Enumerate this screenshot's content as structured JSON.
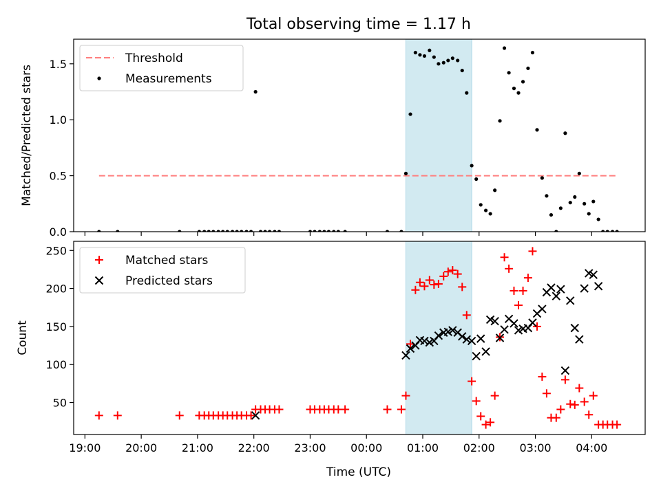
{
  "title": "Total observing time = 1.17 h",
  "xlabel": "Time (UTC)",
  "x_tick_labels": [
    "19:00",
    "20:00",
    "21:00",
    "22:00",
    "23:00",
    "00:00",
    "01:00",
    "02:00",
    "03:00",
    "04:00"
  ],
  "colors": {
    "threshold": "#ff7f7f",
    "measurements": "#000000",
    "matched": "#ff0000",
    "predicted": "#000000",
    "shade": "#add8e6"
  },
  "chart_data": [
    {
      "type": "scatter",
      "ylabel": "Matched/Predicted stars",
      "x_unit": "hours after 19:00 UTC",
      "xlim": [
        -0.2,
        9.95
      ],
      "ylim": [
        0,
        1.72
      ],
      "y_ticks": [
        0.0,
        0.5,
        1.0,
        1.5
      ],
      "y_tick_labels": [
        "0.0",
        "0.5",
        "1.0",
        "1.5"
      ],
      "legend_position": "top-left",
      "legend": [
        "Threshold",
        "Measurements"
      ],
      "threshold": {
        "name": "Threshold",
        "value": 0.5,
        "x_range": [
          0.25,
          9.45
        ]
      },
      "shaded_region": {
        "x_start": 5.7,
        "x_end": 6.87
      },
      "series": [
        {
          "name": "Measurements",
          "x": [
            0.25,
            0.58,
            1.68,
            2.03,
            2.12,
            2.2,
            2.28,
            2.37,
            2.45,
            2.53,
            2.62,
            2.7,
            2.78,
            2.87,
            2.95,
            3.03,
            3.12,
            3.2,
            3.28,
            3.37,
            3.45,
            4.0,
            4.08,
            4.17,
            4.25,
            4.33,
            4.42,
            4.5,
            4.62,
            5.37,
            5.62,
            5.7,
            5.78,
            5.87,
            5.95,
            6.03,
            6.12,
            6.2,
            6.28,
            6.37,
            6.45,
            6.53,
            6.62,
            6.7,
            6.78,
            6.87,
            6.95,
            7.03,
            7.12,
            7.2,
            7.28,
            7.37,
            7.45,
            7.53,
            7.62,
            7.7,
            7.78,
            7.87,
            7.95,
            8.03,
            8.12,
            8.2,
            8.28,
            8.37,
            8.45,
            8.53,
            8.62,
            8.7,
            8.78,
            8.87,
            8.95,
            9.03,
            9.12,
            9.2,
            9.28,
            9.37,
            9.45
          ],
          "y": [
            0,
            0,
            0,
            0,
            0,
            0,
            0,
            0,
            0,
            0,
            0,
            0,
            0,
            0,
            0,
            1.25,
            0,
            0,
            0,
            0,
            0,
            0,
            0,
            0,
            0,
            0,
            0,
            0,
            0,
            0,
            0,
            0.52,
            1.05,
            1.6,
            1.58,
            1.57,
            1.62,
            1.56,
            1.5,
            1.51,
            1.53,
            1.55,
            1.53,
            1.44,
            1.24,
            0.59,
            0.47,
            0.24,
            0.19,
            0.16,
            0.37,
            0.99,
            1.64,
            1.42,
            1.28,
            1.24,
            1.34,
            1.46,
            1.6,
            0.91,
            0.48,
            0.32,
            0.15,
            0.0,
            0.21,
            0.88,
            0.26,
            0.31,
            0.52,
            0.25,
            0.16,
            0.27,
            0.11,
            0.0,
            0.0,
            0.0,
            0.0
          ]
        }
      ]
    },
    {
      "type": "scatter",
      "ylabel": "Count",
      "x_unit": "hours after 19:00 UTC",
      "xlim": [
        -0.2,
        9.95
      ],
      "ylim": [
        8,
        262
      ],
      "y_ticks": [
        50,
        100,
        150,
        200,
        250
      ],
      "y_tick_labels": [
        "50",
        "100",
        "150",
        "200",
        "250"
      ],
      "legend_position": "top-left",
      "legend": [
        "Matched stars",
        "Predicted stars"
      ],
      "shaded_region": {
        "x_start": 5.7,
        "x_end": 6.87
      },
      "series": [
        {
          "name": "Matched stars",
          "marker": "+",
          "x": [
            0.25,
            0.58,
            1.68,
            2.03,
            2.12,
            2.2,
            2.28,
            2.37,
            2.45,
            2.53,
            2.62,
            2.7,
            2.78,
            2.87,
            2.95,
            3.03,
            3.12,
            3.2,
            3.28,
            3.37,
            3.45,
            4.0,
            4.08,
            4.17,
            4.25,
            4.33,
            4.42,
            4.5,
            4.62,
            5.37,
            5.62,
            5.7,
            5.78,
            5.87,
            5.95,
            6.03,
            6.12,
            6.2,
            6.28,
            6.37,
            6.45,
            6.53,
            6.62,
            6.7,
            6.78,
            6.87,
            6.95,
            7.03,
            7.12,
            7.2,
            7.28,
            7.37,
            7.45,
            7.53,
            7.62,
            7.7,
            7.78,
            7.87,
            7.95,
            8.03,
            8.12,
            8.2,
            8.28,
            8.37,
            8.45,
            8.53,
            8.62,
            8.7,
            8.78,
            8.87,
            8.95,
            9.03,
            9.12,
            9.2,
            9.28,
            9.37,
            9.45
          ],
          "y": [
            33,
            33,
            33,
            33,
            33,
            33,
            33,
            33,
            33,
            33,
            33,
            33,
            33,
            33,
            33,
            41,
            41,
            41,
            41,
            41,
            41,
            41,
            41,
            41,
            41,
            41,
            41,
            41,
            41,
            41,
            41,
            59,
            127,
            198,
            208,
            203,
            211,
            205,
            206,
            216,
            222,
            224,
            219,
            202,
            165,
            78,
            52,
            32,
            21,
            24,
            59,
            136,
            241,
            226,
            197,
            178,
            197,
            214,
            249,
            150,
            84,
            62,
            30,
            30,
            41,
            80,
            48,
            47,
            69,
            51,
            34,
            59,
            21,
            21,
            21,
            21,
            21
          ]
        },
        {
          "name": "Predicted stars",
          "marker": "x",
          "x": [
            3.03,
            5.7,
            5.78,
            5.87,
            5.95,
            6.03,
            6.12,
            6.2,
            6.28,
            6.37,
            6.45,
            6.53,
            6.62,
            6.7,
            6.78,
            6.87,
            6.95,
            7.03,
            7.12,
            7.2,
            7.28,
            7.37,
            7.45,
            7.53,
            7.62,
            7.7,
            7.78,
            7.87,
            7.95,
            8.03,
            8.12,
            8.2,
            8.28,
            8.37,
            8.45,
            8.53,
            8.62,
            8.7,
            8.78,
            8.87,
            8.95,
            9.03,
            9.12
          ],
          "y": [
            33,
            112,
            121,
            125,
            132,
            131,
            129,
            131,
            138,
            142,
            143,
            145,
            142,
            137,
            133,
            131,
            111,
            134,
            117,
            159,
            157,
            135,
            146,
            160,
            154,
            145,
            147,
            148,
            155,
            167,
            173,
            195,
            201,
            190,
            199,
            92,
            184,
            148,
            133,
            200,
            220,
            218,
            203
          ]
        }
      ]
    }
  ]
}
